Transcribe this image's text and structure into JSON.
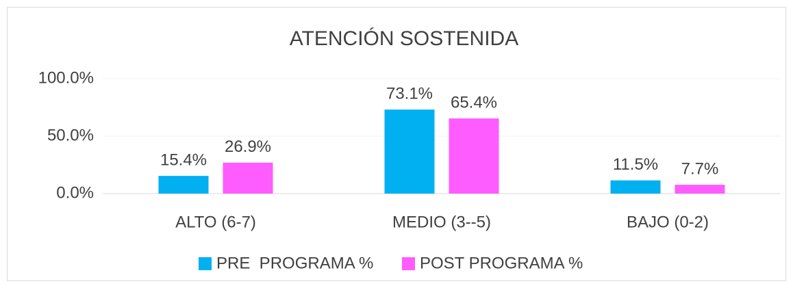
{
  "chart_data": {
    "type": "bar",
    "title": "ATENCIÓN SOSTENIDA",
    "categories": [
      "ALTO (6-7)",
      "MEDIO (3--5)",
      "BAJO (0-2)"
    ],
    "series": [
      {
        "name": "PRE  PROGRAMA %",
        "color": "#00b0f0",
        "values": [
          15.4,
          73.1,
          11.5
        ],
        "value_labels": [
          "15.4%",
          "73.1%",
          "11.5%"
        ]
      },
      {
        "name": "POST PROGRAMA %",
        "color": "#ff5cff",
        "values": [
          26.9,
          65.4,
          7.7
        ],
        "value_labels": [
          "26.9%",
          "65.4%",
          "7.7%"
        ]
      }
    ],
    "ylim": [
      0,
      100
    ],
    "yticks": [
      {
        "value": 0,
        "label": "0.0%"
      },
      {
        "value": 50,
        "label": "50.0%"
      },
      {
        "value": 100,
        "label": "100.0%"
      }
    ],
    "grid": true,
    "legend": "bottom"
  }
}
